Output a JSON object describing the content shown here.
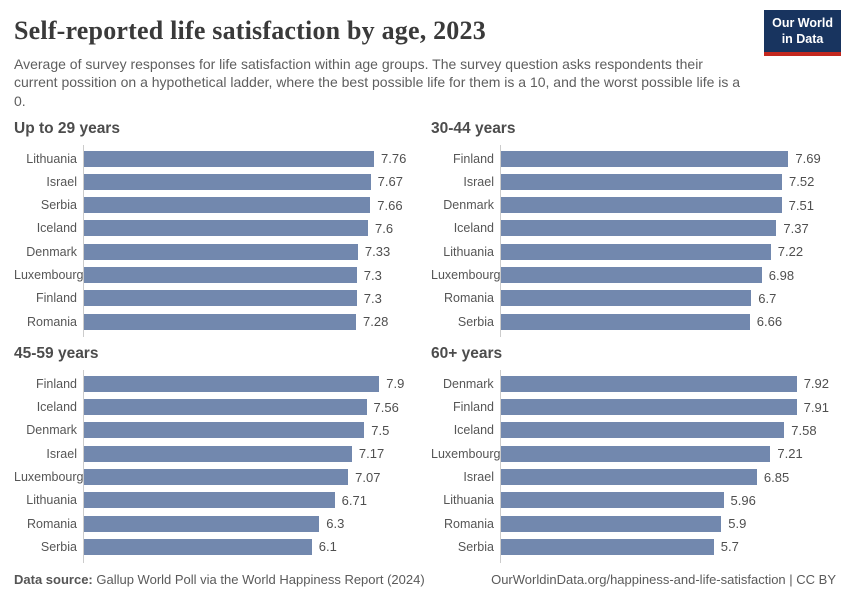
{
  "header": {
    "title": "Self-reported life satisfaction by age, 2023",
    "subtitle": "Average of survey responses for life satisfaction within age groups. The survey question asks respondents their current possition on a hypothetical ladder, where the best possible life for them is a 10, and the worst possible life is a 0."
  },
  "logo": {
    "line1": "Our World",
    "line2": "in Data"
  },
  "footer": {
    "source_label": "Data source:",
    "source_text": " Gallup World Poll via the World Happiness Report (2024)",
    "right_text": "OurWorldinData.org/happiness-and-life-satisfaction | CC BY"
  },
  "colors": {
    "bar": "#7288ae",
    "axis_line": "#cccccc",
    "logo_navy": "#18345f",
    "logo_red": "#c4281f",
    "title_text": "#3a3a3a",
    "body_text": "#565656"
  },
  "chart_data": [
    {
      "type": "bar",
      "title": "Up to 29 years",
      "categories": [
        "Lithuania",
        "Israel",
        "Serbia",
        "Iceland",
        "Denmark",
        "Luxembourg",
        "Finland",
        "Romania"
      ],
      "values": [
        7.76,
        7.67,
        7.66,
        7.6,
        7.33,
        7.3,
        7.3,
        7.28
      ],
      "xlabel": "",
      "ylabel": "",
      "xlim": [
        0,
        8
      ],
      "grid": false,
      "legend": false
    },
    {
      "type": "bar",
      "title": "30-44 years",
      "categories": [
        "Finland",
        "Israel",
        "Denmark",
        "Iceland",
        "Lithuania",
        "Luxembourg",
        "Romania",
        "Serbia"
      ],
      "values": [
        7.69,
        7.52,
        7.51,
        7.37,
        7.22,
        6.98,
        6.7,
        6.66
      ],
      "xlabel": "",
      "ylabel": "",
      "xlim": [
        0,
        8
      ],
      "grid": false,
      "legend": false
    },
    {
      "type": "bar",
      "title": "45-59 years",
      "categories": [
        "Finland",
        "Iceland",
        "Denmark",
        "Israel",
        "Luxembourg",
        "Lithuania",
        "Romania",
        "Serbia"
      ],
      "values": [
        7.9,
        7.56,
        7.5,
        7.17,
        7.07,
        6.71,
        6.3,
        6.1
      ],
      "xlabel": "",
      "ylabel": "",
      "xlim": [
        0,
        8
      ],
      "grid": false,
      "legend": false
    },
    {
      "type": "bar",
      "title": "60+ years",
      "categories": [
        "Denmark",
        "Finland",
        "Iceland",
        "Luxembourg",
        "Israel",
        "Lithuania",
        "Romania",
        "Serbia"
      ],
      "values": [
        7.92,
        7.91,
        7.58,
        7.21,
        6.85,
        5.96,
        5.9,
        5.7
      ],
      "xlabel": "",
      "ylabel": "",
      "xlim": [
        0,
        8
      ],
      "grid": false,
      "legend": false
    }
  ]
}
